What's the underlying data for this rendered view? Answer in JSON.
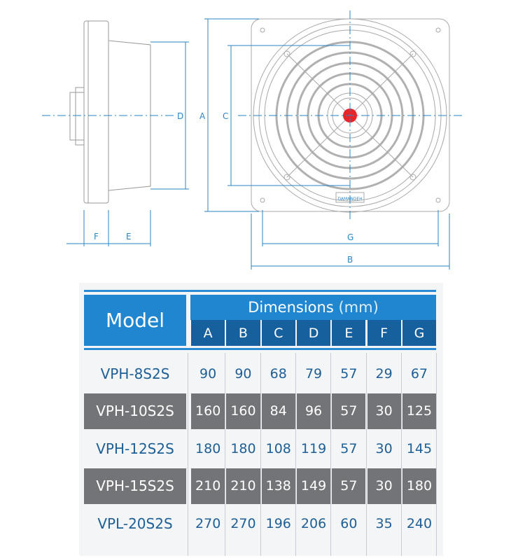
{
  "drawing": {
    "labels": {
      "A": "A",
      "B": "B",
      "C": "C",
      "D": "D",
      "E": "E",
      "F": "F",
      "G": "G"
    },
    "brand_plate": "DAMANDEH",
    "line_color": "#2b86c5",
    "accent_color": "#e8262a"
  },
  "table": {
    "model_header": "Model",
    "dimensions_header": "Dimensions",
    "unit": "(mm)",
    "columns": [
      "A",
      "B",
      "C",
      "D",
      "E",
      "F",
      "G"
    ],
    "rows": [
      {
        "model": "VPH-8S2S",
        "values": [
          "90",
          "90",
          "68",
          "79",
          "57",
          "29",
          "67"
        ]
      },
      {
        "model": "VPH-10S2S",
        "values": [
          "160",
          "160",
          "84",
          "96",
          "57",
          "30",
          "125"
        ]
      },
      {
        "model": "VPH-12S2S",
        "values": [
          "180",
          "180",
          "108",
          "119",
          "57",
          "30",
          "145"
        ]
      },
      {
        "model": "VPH-15S2S",
        "values": [
          "210",
          "210",
          "138",
          "149",
          "57",
          "30",
          "180"
        ]
      },
      {
        "model": "VPL-20S2S",
        "values": [
          "270",
          "270",
          "196",
          "206",
          "60",
          "35",
          "240"
        ]
      }
    ],
    "colors": {
      "header": "#1f86cf",
      "subheader": "#17609e",
      "shaded_row": "#737477",
      "text_blue": "#1d5f96"
    }
  }
}
